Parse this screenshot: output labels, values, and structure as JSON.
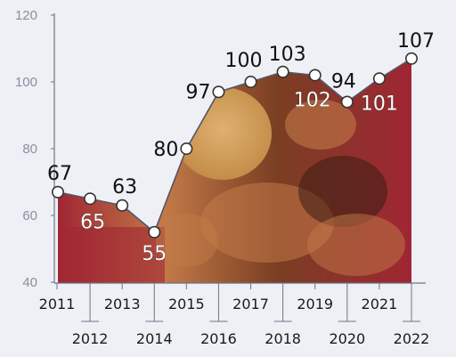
{
  "chart_data": {
    "type": "area",
    "x": [
      "2011",
      "2012",
      "2013",
      "2014",
      "2015",
      "2016",
      "2017",
      "2018",
      "2019",
      "2020",
      "2021",
      "2022"
    ],
    "values": [
      67,
      65,
      63,
      55,
      80,
      97,
      100,
      103,
      102,
      94,
      101,
      107
    ],
    "ylim": [
      40,
      120
    ],
    "yticks": [
      40,
      60,
      80,
      100,
      120
    ],
    "grid": false,
    "legend": "none",
    "colors": {
      "line": "#555566",
      "point_fill": "#ffffff",
      "point_stroke": "#333333",
      "label_on_area": "#ffffff",
      "label_above": "#111111",
      "axis": "#6f7385",
      "ytick_text": "#8a8f9e",
      "xtick_text": "#1a1a1a",
      "background": "#eef0f6",
      "area_red": "#a02634",
      "area_brown": "#7a3e22",
      "area_skin": "#c27a48",
      "area_dark": "#3a1e14",
      "grain": "#c08a44"
    }
  }
}
